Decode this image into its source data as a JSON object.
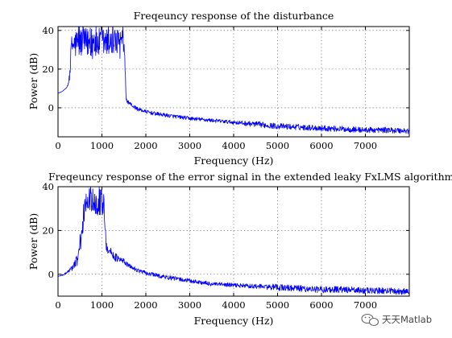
{
  "watermark": {
    "text": "天天Matlab"
  },
  "chart_data": [
    {
      "type": "line",
      "title": "Freqeuncy response of the disturbance",
      "xlabel": "Frequency (Hz)",
      "ylabel": "Power (dB)",
      "xlim": [
        0,
        8000
      ],
      "ylim": [
        -15,
        42
      ],
      "xticks": [
        0,
        1000,
        2000,
        3000,
        4000,
        5000,
        6000,
        7000
      ],
      "yticks": [
        0,
        20,
        40
      ],
      "grid": true,
      "color": "#0000ff",
      "series": [
        {
          "x": [
            0,
            100,
            200,
            250,
            280,
            300,
            400,
            500,
            600,
            700,
            800,
            900,
            1000,
            1100,
            1200,
            1300,
            1400,
            1500,
            1530,
            1550,
            1600,
            1700,
            1800,
            2000,
            2200,
            2500,
            3000,
            3500,
            4000,
            4500,
            5000,
            5500,
            6000,
            6500,
            7000,
            7500,
            8000
          ],
          "y": [
            7.5,
            8.5,
            10.5,
            14,
            20,
            32,
            33,
            34,
            33,
            34,
            33,
            33,
            34,
            33,
            34,
            33,
            33,
            32,
            20,
            4,
            3,
            1,
            -0.5,
            -2,
            -3,
            -4,
            -5.5,
            -6.5,
            -7.5,
            -8.5,
            -9.5,
            -10,
            -10.5,
            -11,
            -11.5,
            -11.5,
            -12
          ],
          "band": [
            0,
            0,
            0,
            1.5,
            3,
            5,
            8,
            8,
            8,
            8,
            8,
            8,
            8,
            8,
            8,
            8,
            8,
            6,
            2,
            1,
            1,
            1,
            1,
            1,
            1,
            1,
            1,
            1,
            1,
            1.5,
            1.5,
            1.5,
            1.5,
            1.5,
            1.5,
            1.5,
            1.5
          ]
        }
      ]
    },
    {
      "type": "line",
      "title": "Freqeuncy response of the error signal in the extended leaky FxLMS algorithm",
      "xlabel": "Frequency (Hz)",
      "ylabel": "Power (dB)",
      "xlim": [
        0,
        8000
      ],
      "ylim": [
        -10,
        40
      ],
      "xticks": [
        0,
        1000,
        2000,
        3000,
        4000,
        5000,
        6000,
        7000
      ],
      "yticks": [
        0,
        20,
        40
      ],
      "grid": true,
      "color": "#0000ff",
      "series": [
        {
          "x": [
            0,
            150,
            300,
            400,
            450,
            500,
            550,
            600,
            650,
            700,
            800,
            900,
            1000,
            1050,
            1100,
            1200,
            1300,
            1400,
            1500,
            1600,
            1800,
            2000,
            2500,
            3000,
            3500,
            4000,
            4500,
            5000,
            5500,
            6000,
            6500,
            7000,
            7500,
            8000
          ],
          "y": [
            -1,
            0,
            2.5,
            5,
            7,
            12,
            20,
            30,
            33,
            34,
            34,
            33,
            33,
            28,
            13,
            10,
            8,
            6.5,
            6,
            4,
            2,
            0.5,
            -1.5,
            -3,
            -4.5,
            -5,
            -5.5,
            -6,
            -6.5,
            -7,
            -7,
            -7.5,
            -7.5,
            -8
          ],
          "band": [
            0,
            0.5,
            1,
            3,
            3,
            4,
            5,
            6,
            6,
            6,
            6,
            6,
            6,
            4,
            3,
            2,
            2,
            1.5,
            1.5,
            1,
            1,
            1,
            1,
            1,
            1,
            1,
            1,
            1.5,
            1.5,
            1.5,
            1.5,
            1.5,
            1.5,
            1.5
          ]
        }
      ]
    }
  ]
}
